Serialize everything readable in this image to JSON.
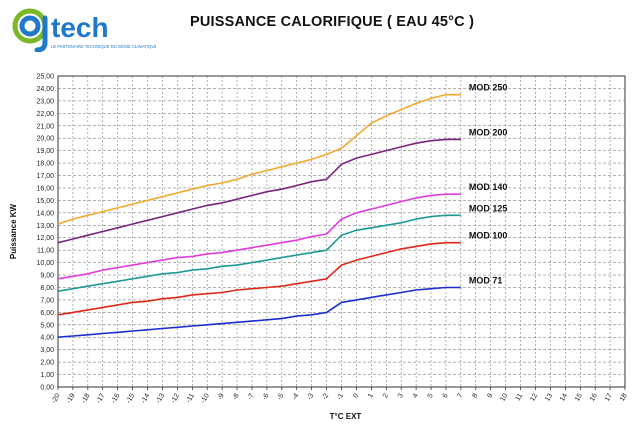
{
  "logo": {
    "name": "ajtech",
    "tagline": "LE PARTENAIRE TECHNIQUE DU GÉNIE CLIMATIQUE",
    "colors": {
      "blue": "#1f78c8",
      "green": "#7ab828"
    }
  },
  "title": "PUISSANCE CALORIFIQUE ( EAU 45°C )",
  "chart_data": {
    "type": "line",
    "title": "PUISSANCE CALORIFIQUE ( EAU 45°C )",
    "xlabel": "T°C EXT",
    "ylabel": "Puissance KW",
    "xlim": [
      -20,
      18
    ],
    "ylim": [
      0,
      25
    ],
    "x_ticks": [
      "-20",
      "-19",
      "-18",
      "-17",
      "-16",
      "-15",
      "-14",
      "-13",
      "-12",
      "-11",
      "-10",
      "-9",
      "-8",
      "-7",
      "-6",
      "-5",
      "-4",
      "-3",
      "-2",
      "-1",
      "0",
      "1",
      "2",
      "3",
      "4",
      "5",
      "6",
      "7",
      "8",
      "9",
      "10",
      "11",
      "12",
      "13",
      "14",
      "15",
      "16",
      "17",
      "18"
    ],
    "y_ticks": [
      "0,00",
      "1,00",
      "2,00",
      "3,00",
      "4,00",
      "5,00",
      "6,00",
      "7,00",
      "8,00",
      "9,00",
      "10,00",
      "11,00",
      "12,00",
      "13,00",
      "14,00",
      "15,00",
      "16,00",
      "17,00",
      "18,00",
      "19,00",
      "20,00",
      "21,00",
      "22,00",
      "23,00",
      "24,00",
      "25,00"
    ],
    "grid": true,
    "legend": "labels at line ends",
    "x": [
      -20,
      -19,
      -18,
      -17,
      -16,
      -15,
      -14,
      -13,
      -12,
      -11,
      -10,
      -9,
      -8,
      -7,
      -6,
      -5,
      -4,
      -3,
      -2,
      -1,
      0,
      1,
      2,
      3,
      4,
      5,
      6,
      7
    ],
    "series": [
      {
        "name": "MOD 250",
        "color": "#f5a830",
        "values": [
          13.1,
          13.5,
          13.8,
          14.1,
          14.4,
          14.7,
          15.0,
          15.3,
          15.6,
          15.9,
          16.2,
          16.4,
          16.7,
          17.1,
          17.4,
          17.7,
          18.0,
          18.3,
          18.7,
          19.2,
          20.2,
          21.2,
          21.8,
          22.3,
          22.8,
          23.2,
          23.5,
          23.5
        ]
      },
      {
        "name": "MOD 200",
        "color": "#7a2480",
        "values": [
          11.6,
          11.9,
          12.2,
          12.5,
          12.8,
          13.1,
          13.4,
          13.7,
          14.0,
          14.3,
          14.6,
          14.8,
          15.1,
          15.4,
          15.7,
          15.9,
          16.2,
          16.5,
          16.7,
          17.9,
          18.4,
          18.7,
          19.0,
          19.3,
          19.6,
          19.8,
          19.9,
          19.9
        ]
      },
      {
        "name": "MOD 140",
        "color": "#e23ce0",
        "values": [
          8.7,
          8.9,
          9.1,
          9.4,
          9.6,
          9.8,
          10.0,
          10.2,
          10.4,
          10.5,
          10.7,
          10.8,
          11.0,
          11.2,
          11.4,
          11.6,
          11.8,
          12.1,
          12.3,
          13.5,
          14.0,
          14.3,
          14.6,
          14.9,
          15.2,
          15.4,
          15.5,
          15.5
        ]
      },
      {
        "name": "MOD 125",
        "color": "#1e9a96",
        "values": [
          7.7,
          7.9,
          8.1,
          8.3,
          8.5,
          8.7,
          8.9,
          9.1,
          9.2,
          9.4,
          9.5,
          9.7,
          9.8,
          10.0,
          10.2,
          10.4,
          10.6,
          10.8,
          11.0,
          12.2,
          12.6,
          12.8,
          13.0,
          13.2,
          13.5,
          13.7,
          13.8,
          13.8
        ]
      },
      {
        "name": "MOD 100",
        "color": "#e02818",
        "values": [
          5.8,
          6.0,
          6.2,
          6.4,
          6.6,
          6.8,
          6.9,
          7.1,
          7.2,
          7.4,
          7.5,
          7.6,
          7.8,
          7.9,
          8.0,
          8.1,
          8.3,
          8.5,
          8.7,
          9.8,
          10.2,
          10.5,
          10.8,
          11.1,
          11.3,
          11.5,
          11.6,
          11.6
        ]
      },
      {
        "name": "MOD 71",
        "color": "#1a2fd0",
        "values": [
          4.0,
          4.1,
          4.2,
          4.3,
          4.4,
          4.5,
          4.6,
          4.7,
          4.8,
          4.9,
          5.0,
          5.1,
          5.2,
          5.3,
          5.4,
          5.5,
          5.7,
          5.8,
          6.0,
          6.8,
          7.0,
          7.2,
          7.4,
          7.6,
          7.8,
          7.9,
          8.0,
          8.0
        ]
      }
    ]
  }
}
